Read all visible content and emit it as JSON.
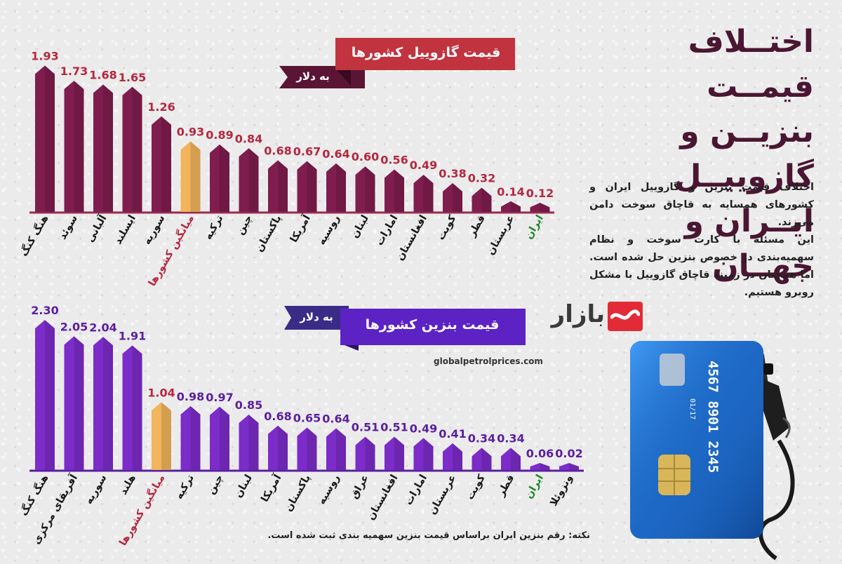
{
  "title": "اختلاف قیمت بنزین و گازوییل ایران و جهان",
  "title_lines": [
    "اختــلاف قیمــت",
    "بنزیــن و گازوییــل",
    "ایــران و جهــان"
  ],
  "description": [
    "اختلاف قیمت بنزین و گازوییل ایران و کشورهای همسایه به قاچاق سوخت دامن می‌زند.",
    "این مسئله با کارت سوخت و نظام سهمیه‌بندی در خصوص بنزین حل شده است. اما همچنان در زمینه قاچاق گازوییل با مشکل روبرو هستیم."
  ],
  "logo_text": "بازار",
  "source": "globalpetrolprices.com",
  "note": "نکته: رقم بنزین ایران براساس قیمت بنزین سهمیه بندی ثبت شده است.",
  "card": {
    "number": "4567 8901 2345",
    "expiry": "01/17",
    "number_label": "4567 8901 2345",
    "small_code": "01/17"
  },
  "colors": {
    "diesel_bar": "#7f1d4e",
    "diesel_top": "#c0333f",
    "petrol_bar": "#7b2cc9",
    "petrol_top": "#5a1f9e",
    "average_bar": "#f2b45c",
    "average_label": "#b3283f",
    "iran_label": "#1f8a2d",
    "title": "#4a1632"
  },
  "chart_data": [
    {
      "type": "bar",
      "title": "قیمت گازوییل کشورها",
      "unit": "به دلار",
      "categories": [
        "هنگ کنگ",
        "سوئد",
        "آلبانی",
        "ایسلند",
        "سوریه",
        "میانگین کشورها",
        "ترکیه",
        "چین",
        "پاکستان",
        "آمریکا",
        "روسیه",
        "لبنان",
        "امارات",
        "افغانستان",
        "کویت",
        "قطر",
        "عربستان",
        "ایران"
      ],
      "values": [
        1.93,
        1.73,
        1.68,
        1.65,
        1.26,
        0.93,
        0.89,
        0.84,
        0.68,
        0.67,
        0.64,
        0.6,
        0.56,
        0.49,
        0.38,
        0.32,
        0.14,
        0.12
      ],
      "value_labels": [
        "1.93",
        "1.73",
        "1.68",
        "1.65",
        "1.26",
        "0.93",
        "0.89",
        "0.84",
        "0.68",
        "0.67",
        "0.64",
        "0.60",
        "0.56",
        "0.49",
        "0.38",
        "0.32",
        "0.14",
        "0.12"
      ],
      "highlight": {
        "average": "میانگین کشورها",
        "iran": "ایران"
      }
    },
    {
      "type": "bar",
      "title": "قیمت بنزین کشورها",
      "unit": "به دلار",
      "categories": [
        "هنگ کنگ",
        "آفریقای مرکزی",
        "سوریه",
        "هلند",
        "میانگین کشورها",
        "ترکیه",
        "چین",
        "لبنان",
        "آمریکا",
        "پاکستان",
        "روسیه",
        "عراق",
        "افغانستان",
        "امارات",
        "عربستان",
        "کویت",
        "قطر",
        "ایران",
        "ونزوئلا"
      ],
      "values": [
        2.3,
        2.05,
        2.04,
        1.91,
        1.04,
        0.98,
        0.97,
        0.85,
        0.68,
        0.65,
        0.64,
        0.51,
        0.51,
        0.49,
        0.41,
        0.34,
        0.34,
        0.06,
        0.02
      ],
      "value_labels": [
        "2.30",
        "2.05",
        "2.04",
        "1.91",
        "1.04",
        "0.98",
        "0.97",
        "0.85",
        "0.68",
        "0.65",
        "0.64",
        "0.51",
        "0.51",
        "0.49",
        "0.41",
        "0.34",
        "0.34",
        "0.06",
        "0.02"
      ],
      "highlight": {
        "average": "میانگین کشورها",
        "iran": "ایران"
      }
    }
  ]
}
